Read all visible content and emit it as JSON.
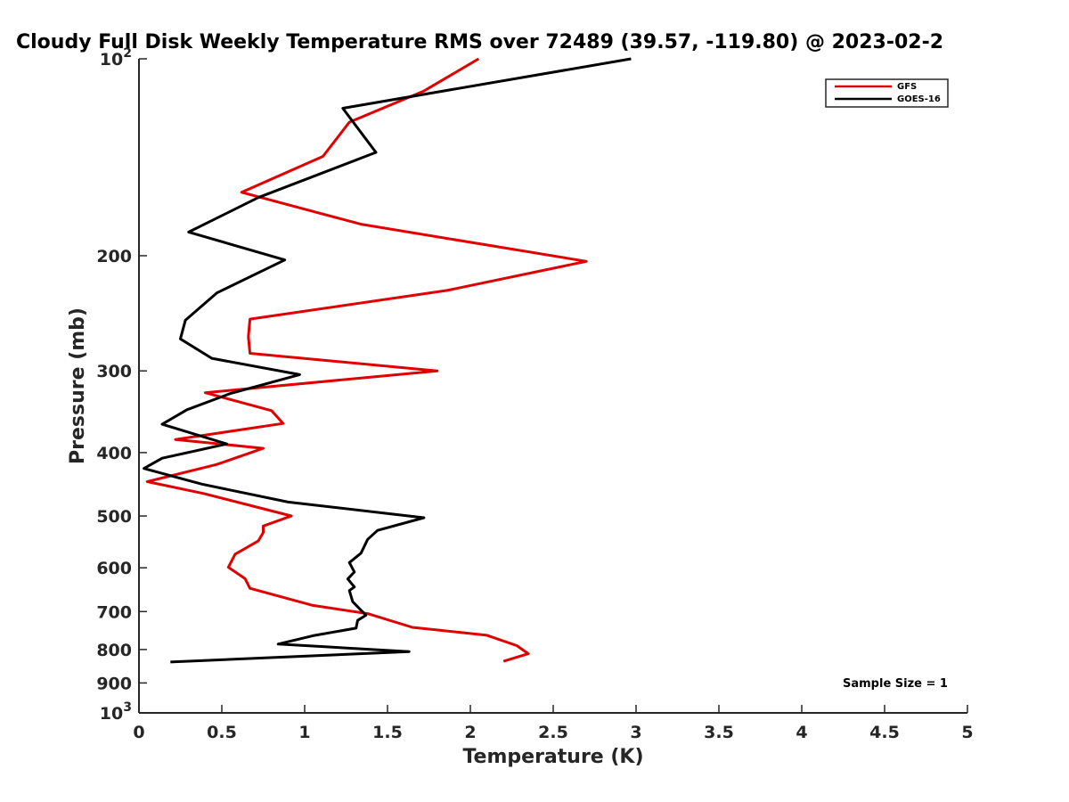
{
  "chart_data": {
    "type": "line",
    "title": "Cloudy Full Disk Weekly Temperature RMS over 72489 (39.57, -119.80) @ 2023-02-2",
    "xlabel": "Temperature (K)",
    "ylabel": "Pressure (mb)",
    "xlim": [
      0,
      5
    ],
    "ylim": [
      100,
      1000
    ],
    "yscale": "log",
    "yreversed": true,
    "grid": false,
    "legend_position": "top-right",
    "xticks": [
      "0",
      "0.5",
      "1",
      "1.5",
      "2",
      "2.5",
      "3",
      "3.5",
      "4",
      "4.5",
      "5"
    ],
    "xtick_values": [
      0,
      0.5,
      1,
      1.5,
      2,
      2.5,
      3,
      3.5,
      4,
      4.5,
      5
    ],
    "yticks": [
      {
        "value": 100,
        "base": "10",
        "exp": "2"
      },
      {
        "value": 200,
        "base": "200",
        "exp": ""
      },
      {
        "value": 300,
        "base": "300",
        "exp": ""
      },
      {
        "value": 400,
        "base": "400",
        "exp": ""
      },
      {
        "value": 500,
        "base": "500",
        "exp": ""
      },
      {
        "value": 600,
        "base": "600",
        "exp": ""
      },
      {
        "value": 700,
        "base": "700",
        "exp": ""
      },
      {
        "value": 800,
        "base": "800",
        "exp": ""
      },
      {
        "value": 900,
        "base": "900",
        "exp": ""
      },
      {
        "value": 1000,
        "base": "10",
        "exp": "3"
      }
    ],
    "annotation": "Sample Size = 1",
    "series": [
      {
        "name": "GFS",
        "color": "#e00000",
        "points": [
          [
            2.05,
            100
          ],
          [
            1.72,
            112
          ],
          [
            1.27,
            125
          ],
          [
            1.11,
            141
          ],
          [
            0.62,
            160
          ],
          [
            1.34,
            179
          ],
          [
            2.7,
            204
          ],
          [
            1.86,
            226
          ],
          [
            0.67,
            250
          ],
          [
            0.66,
            266
          ],
          [
            0.67,
            282
          ],
          [
            1.8,
            300
          ],
          [
            0.4,
            324
          ],
          [
            0.8,
            345
          ],
          [
            0.87,
            361
          ],
          [
            0.22,
            382
          ],
          [
            0.75,
            394
          ],
          [
            0.47,
            417
          ],
          [
            0.05,
            443
          ],
          [
            0.39,
            462
          ],
          [
            0.92,
            500
          ],
          [
            0.75,
            518
          ],
          [
            0.75,
            530
          ],
          [
            0.72,
            546
          ],
          [
            0.58,
            572
          ],
          [
            0.54,
            599
          ],
          [
            0.64,
            623
          ],
          [
            0.67,
            645
          ],
          [
            1.05,
            685
          ],
          [
            1.38,
            705
          ],
          [
            1.65,
            740
          ],
          [
            2.1,
            761
          ],
          [
            2.28,
            789
          ],
          [
            2.35,
            812
          ],
          [
            2.2,
            834
          ]
        ]
      },
      {
        "name": "GOES-16",
        "color": "#000000",
        "points": [
          [
            2.97,
            100
          ],
          [
            1.23,
            119
          ],
          [
            1.43,
            139
          ],
          [
            0.72,
            163
          ],
          [
            0.3,
            184
          ],
          [
            0.88,
            203
          ],
          [
            0.47,
            228
          ],
          [
            0.28,
            251
          ],
          [
            0.25,
            268
          ],
          [
            0.44,
            287
          ],
          [
            0.97,
            304
          ],
          [
            0.55,
            325
          ],
          [
            0.29,
            344
          ],
          [
            0.14,
            362
          ],
          [
            0.53,
            388
          ],
          [
            0.14,
            408
          ],
          [
            0.03,
            423
          ],
          [
            0.38,
            447
          ],
          [
            0.9,
            476
          ],
          [
            1.72,
            503
          ],
          [
            1.44,
            526
          ],
          [
            1.38,
            543
          ],
          [
            1.34,
            570
          ],
          [
            1.27,
            589
          ],
          [
            1.3,
            609
          ],
          [
            1.26,
            624
          ],
          [
            1.3,
            642
          ],
          [
            1.27,
            650
          ],
          [
            1.29,
            676
          ],
          [
            1.37,
            709
          ],
          [
            1.32,
            722
          ],
          [
            1.31,
            742
          ],
          [
            1.05,
            762
          ],
          [
            0.84,
            785
          ],
          [
            1.63,
            806
          ],
          [
            0.19,
            836
          ]
        ]
      }
    ]
  }
}
